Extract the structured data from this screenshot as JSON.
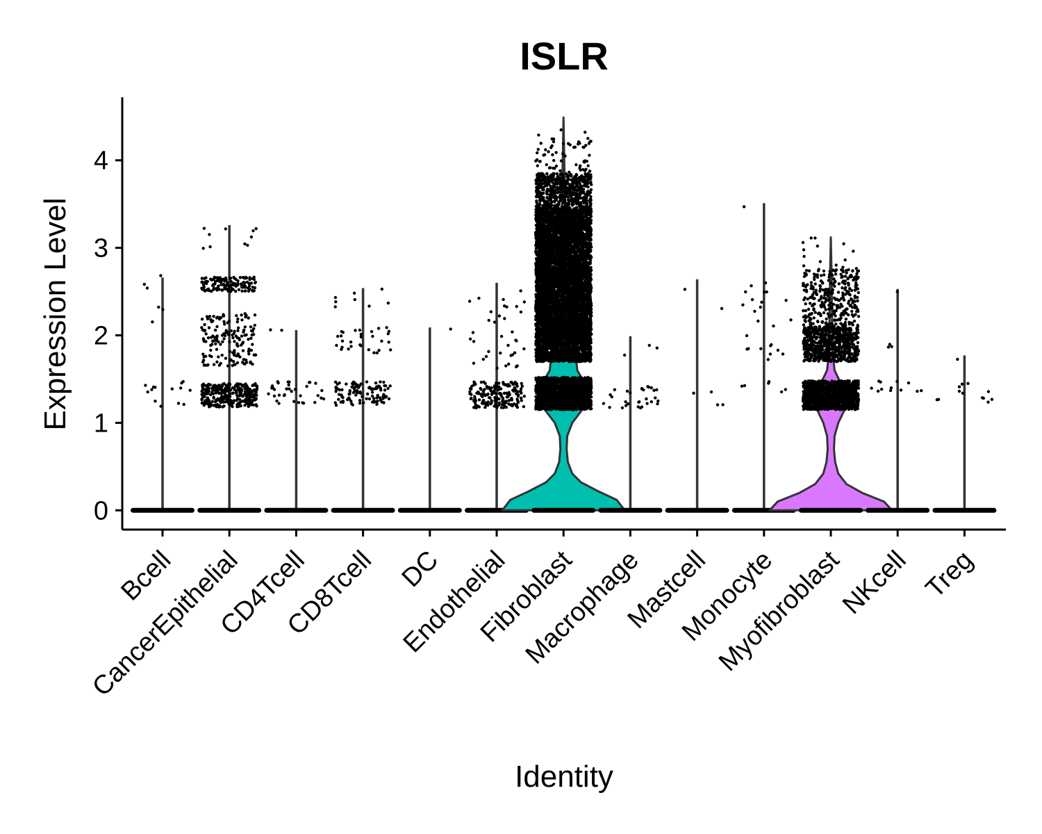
{
  "chart_data": {
    "type": "violin",
    "title": "ISLR",
    "xlabel": "Identity",
    "ylabel": "Expression Level",
    "ylim": [
      -0.22,
      4.72
    ],
    "yticks": [
      0,
      1,
      2,
      3,
      4
    ],
    "grid": false,
    "legend": "none",
    "colors": {
      "Fibroblast": "#00BFAE",
      "Myofibroblast": "#D978FF",
      "outline": "#333333",
      "points": "#000000"
    },
    "categories": [
      "Bcell",
      "CancerEpithelial",
      "CD4Tcell",
      "CD8Tcell",
      "DC",
      "Endothelial",
      "Fibroblast",
      "Macrophage",
      "Mastcell",
      "Monocyte",
      "Myofibroblast",
      "NKcell",
      "Treg"
    ],
    "series": [
      {
        "category": "Bcell",
        "max": 2.66,
        "bands": [
          [
            1.15,
            1.5,
            14
          ],
          [
            2.05,
            2.7,
            6
          ]
        ]
      },
      {
        "category": "CancerEpithelial",
        "max": 3.26,
        "bands": [
          [
            1.18,
            1.45,
            320
          ],
          [
            1.65,
            2.25,
            160
          ],
          [
            2.5,
            2.67,
            140
          ],
          [
            2.95,
            3.27,
            10
          ]
        ]
      },
      {
        "category": "CD4Tcell",
        "max": 2.06,
        "bands": [
          [
            1.2,
            1.47,
            35
          ],
          [
            2.0,
            2.08,
            2
          ]
        ]
      },
      {
        "category": "CD8Tcell",
        "max": 2.54,
        "bands": [
          [
            1.2,
            1.47,
            110
          ],
          [
            1.78,
            2.1,
            30
          ],
          [
            2.3,
            2.55,
            8
          ]
        ]
      },
      {
        "category": "DC",
        "max": 2.09,
        "bands": [
          [
            2.07,
            2.1,
            1
          ]
        ]
      },
      {
        "category": "Endothelial",
        "max": 2.6,
        "bands": [
          [
            1.17,
            1.47,
            180
          ],
          [
            1.6,
            2.05,
            22
          ],
          [
            2.15,
            2.6,
            14
          ]
        ]
      },
      {
        "category": "Fibroblast",
        "max": 4.49,
        "bands": [
          [
            1.15,
            1.52,
            1500
          ],
          [
            1.7,
            3.45,
            9000
          ],
          [
            3.45,
            3.85,
            600
          ],
          [
            3.85,
            4.25,
            60
          ],
          [
            4.25,
            4.49,
            3
          ]
        ]
      },
      {
        "category": "Macrophage",
        "max": 1.99,
        "bands": [
          [
            1.17,
            1.42,
            30
          ],
          [
            1.75,
            2.0,
            3
          ]
        ]
      },
      {
        "category": "Mastcell",
        "max": 2.64,
        "bands": [
          [
            1.18,
            1.4,
            4
          ],
          [
            2.05,
            2.64,
            2
          ]
        ]
      },
      {
        "category": "Monocyte",
        "max": 3.51,
        "bands": [
          [
            1.35,
            1.5,
            6
          ],
          [
            1.7,
            2.6,
            24
          ],
          [
            3.45,
            3.51,
            1
          ]
        ]
      },
      {
        "category": "Myofibroblast",
        "max": 3.12,
        "bands": [
          [
            1.15,
            1.48,
            1300
          ],
          [
            1.7,
            2.1,
            700
          ],
          [
            2.1,
            2.75,
            320
          ],
          [
            2.75,
            3.12,
            15
          ]
        ]
      },
      {
        "category": "NKcell",
        "max": 2.53,
        "bands": [
          [
            1.35,
            1.5,
            12
          ],
          [
            1.7,
            2.1,
            3
          ],
          [
            2.45,
            2.55,
            1
          ]
        ]
      },
      {
        "category": "Treg",
        "max": 1.77,
        "bands": [
          [
            1.2,
            1.47,
            12
          ],
          [
            1.7,
            1.78,
            1
          ]
        ]
      }
    ],
    "violin_profiles": {
      "Fibroblast": [
        [
          0,
          0.98
        ],
        [
          0.12,
          0.85
        ],
        [
          0.22,
          0.55
        ],
        [
          0.32,
          0.28
        ],
        [
          0.42,
          0.14
        ],
        [
          0.55,
          0.07
        ],
        [
          0.7,
          0.05
        ],
        [
          0.85,
          0.06
        ],
        [
          1.0,
          0.14
        ],
        [
          1.15,
          0.3
        ],
        [
          1.3,
          0.42
        ],
        [
          1.45,
          0.34
        ],
        [
          1.6,
          0.22
        ],
        [
          1.75,
          0.2
        ],
        [
          2.0,
          0.15
        ],
        [
          2.5,
          0.09
        ],
        [
          3.0,
          0.05
        ],
        [
          3.5,
          0.025
        ],
        [
          4.0,
          0.012
        ],
        [
          4.49,
          0.0
        ]
      ],
      "Myofibroblast": [
        [
          0,
          0.98
        ],
        [
          0.1,
          0.85
        ],
        [
          0.2,
          0.5
        ],
        [
          0.3,
          0.25
        ],
        [
          0.42,
          0.12
        ],
        [
          0.55,
          0.07
        ],
        [
          0.7,
          0.05
        ],
        [
          0.85,
          0.06
        ],
        [
          1.0,
          0.12
        ],
        [
          1.15,
          0.22
        ],
        [
          1.3,
          0.24
        ],
        [
          1.45,
          0.16
        ],
        [
          1.6,
          0.06
        ],
        [
          1.8,
          0.03
        ],
        [
          2.2,
          0.02
        ],
        [
          2.7,
          0.012
        ],
        [
          3.12,
          0.0
        ]
      ]
    }
  }
}
